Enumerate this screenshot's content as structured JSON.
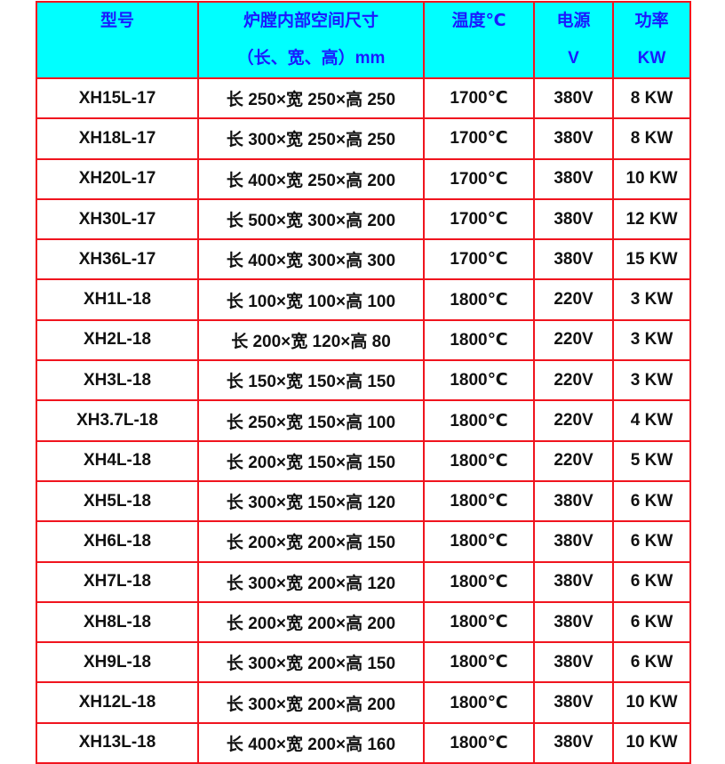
{
  "colors": {
    "header_bg": "#00ffff",
    "header_text": "#1a1aff",
    "border": "#f0141e"
  },
  "headers": [
    {
      "line1": "型号",
      "line2": ""
    },
    {
      "line1": "炉膛内部空间尺寸",
      "line2": "（长、宽、高）mm"
    },
    {
      "line1": "温度℃",
      "line2": ""
    },
    {
      "line1": "电源",
      "line2": "V"
    },
    {
      "line1": "功率",
      "line2": "KW"
    }
  ],
  "rows": [
    [
      "XH15L-17",
      "长 250×宽 250×高 250",
      "1700℃",
      "380V",
      "8 KW"
    ],
    [
      "XH18L-17",
      "长 300×宽 250×高 250",
      "1700℃",
      "380V",
      "8 KW"
    ],
    [
      "XH20L-17",
      "长 400×宽 250×高 200",
      "1700℃",
      "380V",
      "10 KW"
    ],
    [
      "XH30L-17",
      "长 500×宽 300×高 200",
      "1700℃",
      "380V",
      "12 KW"
    ],
    [
      "XH36L-17",
      "长 400×宽 300×高 300",
      "1700℃",
      "380V",
      "15 KW"
    ],
    [
      "XH1L-18",
      "长 100×宽 100×高 100",
      "1800℃",
      "220V",
      "3 KW"
    ],
    [
      "XH2L-18",
      "长 200×宽 120×高 80",
      "1800℃",
      "220V",
      "3 KW"
    ],
    [
      "XH3L-18",
      "长 150×宽 150×高 150",
      "1800℃",
      "220V",
      "3 KW"
    ],
    [
      "XH3.7L-18",
      "长 250×宽 150×高 100",
      "1800℃",
      "220V",
      "4 KW"
    ],
    [
      "XH4L-18",
      "长 200×宽 150×高 150",
      "1800℃",
      "220V",
      "5 KW"
    ],
    [
      "XH5L-18",
      "长 300×宽 150×高 120",
      "1800℃",
      "380V",
      "6 KW"
    ],
    [
      "XH6L-18",
      "长 200×宽 200×高 150",
      "1800℃",
      "380V",
      "6 KW"
    ],
    [
      "XH7L-18",
      "长 300×宽 200×高 120",
      "1800℃",
      "380V",
      "6 KW"
    ],
    [
      "XH8L-18",
      "长 200×宽 200×高 200",
      "1800℃",
      "380V",
      "6 KW"
    ],
    [
      "XH9L-18",
      "长 300×宽 200×高 150",
      "1800℃",
      "380V",
      "6 KW"
    ],
    [
      "XH12L-18",
      "长 300×宽 200×高 200",
      "1800℃",
      "380V",
      "10 KW"
    ],
    [
      "XH13L-18",
      "长 400×宽 200×高 160",
      "1800℃",
      "380V",
      "10 KW"
    ]
  ]
}
